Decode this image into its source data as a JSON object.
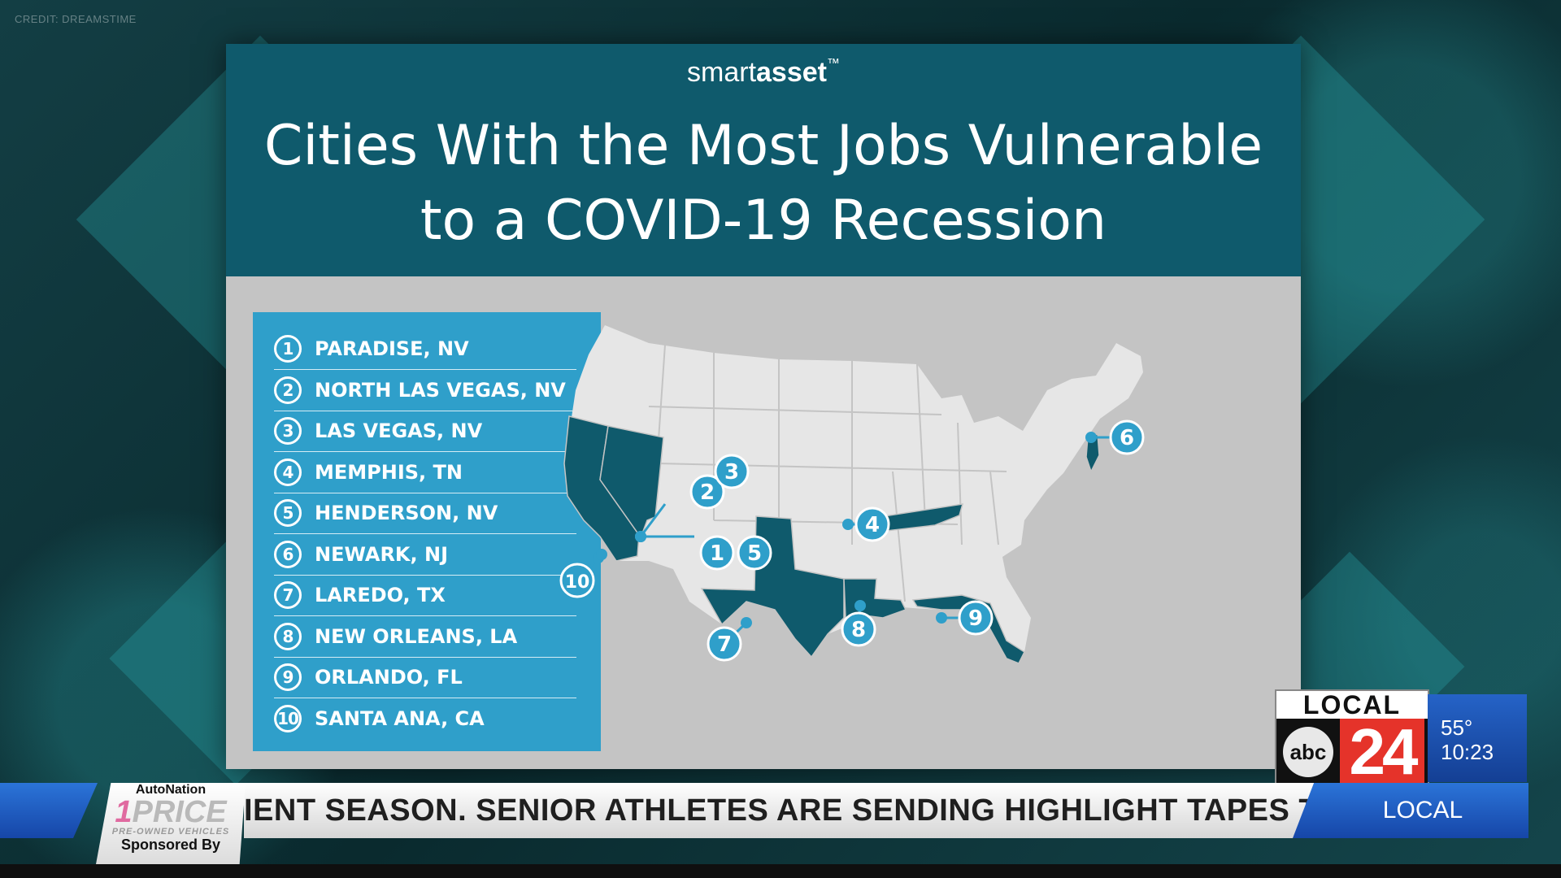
{
  "credit": "CREDIT: DREAMSTIME",
  "brand": {
    "light": "smart",
    "bold": "asset",
    "tm": "™"
  },
  "title_lines": [
    "Cities With the Most Jobs Vulnerable",
    "to a COVID-19 Recession"
  ],
  "cities": [
    {
      "rank": "1",
      "name": "PARADISE, NV"
    },
    {
      "rank": "2",
      "name": "NORTH LAS VEGAS, NV"
    },
    {
      "rank": "3",
      "name": "LAS VEGAS, NV"
    },
    {
      "rank": "4",
      "name": "MEMPHIS, TN"
    },
    {
      "rank": "5",
      "name": "HENDERSON, NV"
    },
    {
      "rank": "6",
      "name": "NEWARK, NJ"
    },
    {
      "rank": "7",
      "name": "LAREDO, TX"
    },
    {
      "rank": "8",
      "name": "NEW ORLEANS, LA"
    },
    {
      "rank": "9",
      "name": "ORLANDO, FL"
    },
    {
      "rank": "10",
      "name": "SANTA ANA, CA"
    }
  ],
  "map": {
    "highlighted_states": [
      "California",
      "Nevada",
      "Texas",
      "Louisiana",
      "Tennessee",
      "Florida",
      "New Jersey"
    ],
    "colors": {
      "base": "#e6e6e6",
      "highlight": "#0f5a6c",
      "marker": "#2f9fca",
      "state_line": "#c4c4c4"
    },
    "markers": [
      "1",
      "2",
      "3",
      "4",
      "5",
      "6",
      "7",
      "8",
      "9",
      "10"
    ]
  },
  "ticker": {
    "text": "IENT SEASON. SENIOR ATHLETES ARE SENDING HIGHLIGHT TAPES TO",
    "section": "LOCAL"
  },
  "sponsor": {
    "brand": "AutoNation",
    "one": "1",
    "price": "PRICE",
    "sub": "PRE-OWNED VEHICLES",
    "sponsored_by": "Sponsored By"
  },
  "station": {
    "local": "LOCAL",
    "network": "abc",
    "channel": "24"
  },
  "weather": {
    "temp": "55°",
    "time": "10:23"
  }
}
